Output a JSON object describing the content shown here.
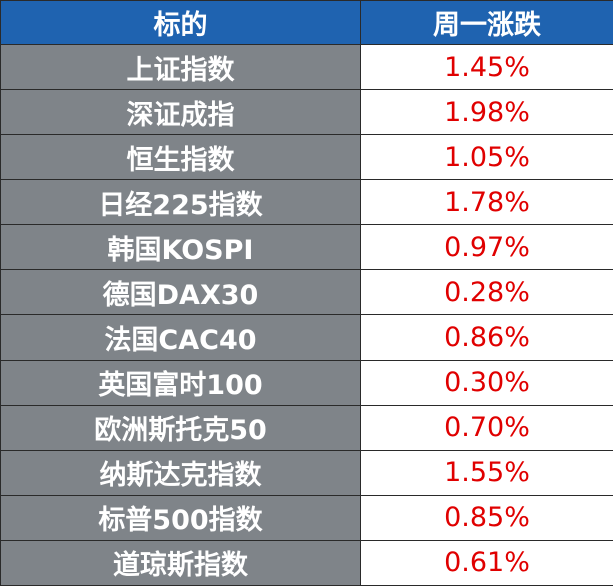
{
  "table": {
    "header": [
      "标的",
      "周一涨跌"
    ],
    "rows": [
      [
        "上证指数",
        "1.45%"
      ],
      [
        "深证成指",
        "1.98%"
      ],
      [
        "恒生指数",
        "1.05%"
      ],
      [
        "日经225指数",
        "1.78%"
      ],
      [
        "韩国KOSPI",
        "0.97%"
      ],
      [
        "德国DAX30",
        "0.28%"
      ],
      [
        "法国CAC40",
        "0.86%"
      ],
      [
        "英国富时100",
        "0.30%"
      ],
      [
        "欧洲斯托克50",
        "0.70%"
      ],
      [
        "纳斯达克指数",
        "1.55%"
      ],
      [
        "标普500指数",
        "0.85%"
      ],
      [
        "道琼斯指数",
        "0.61%"
      ]
    ]
  }
}
